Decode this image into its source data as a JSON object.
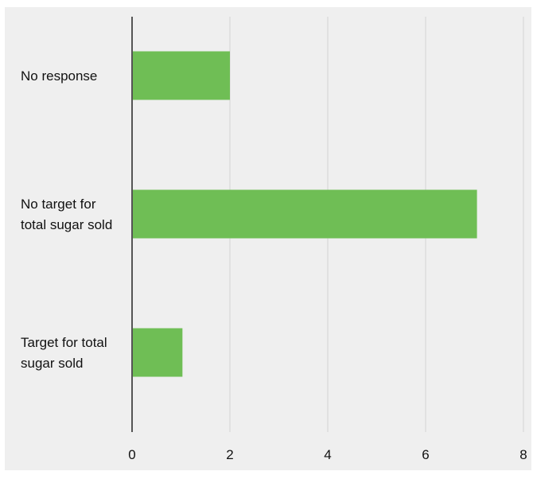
{
  "chart_data": {
    "type": "bar",
    "orientation": "horizontal",
    "categories": [
      [
        "No response"
      ],
      [
        "No target for",
        "total sugar sold"
      ],
      [
        "Target for total",
        "sugar sold"
      ]
    ],
    "values": [
      2,
      7.05,
      1.03
    ],
    "xlim": [
      0,
      8
    ],
    "xticks": [
      "0",
      "2",
      "4",
      "6",
      "8"
    ],
    "grid": true,
    "bar_color": "#6fbe55",
    "grid_color": "#d3d3d3",
    "axis_color": "#222222",
    "background": "#efefef"
  }
}
